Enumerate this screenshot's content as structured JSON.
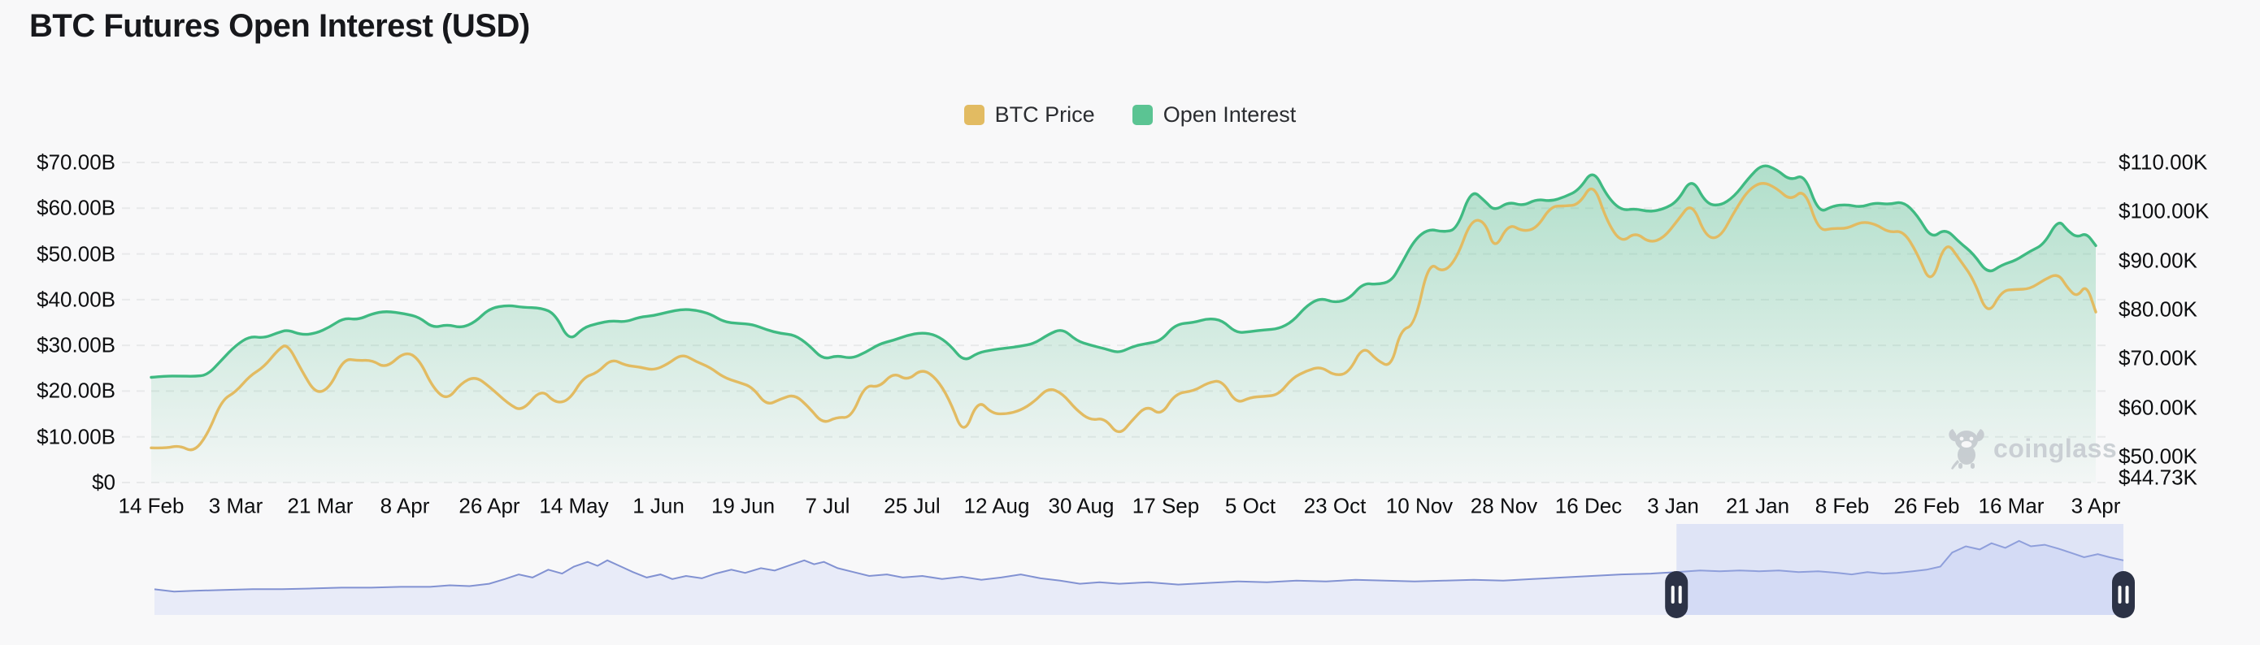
{
  "title": "BTC Futures Open Interest (USD)",
  "legend": [
    {
      "label": "BTC Price",
      "color": "#E2BB62"
    },
    {
      "label": "Open Interest",
      "color": "#5BC493"
    }
  ],
  "watermark": "coinglass",
  "colors": {
    "background": "#f8f8f9",
    "grid": "#e8e9ea",
    "open_interest_line": "#3FBA82",
    "open_interest_fill_top": "rgba(76,187,137,0.42)",
    "open_interest_fill_bottom": "rgba(76,187,137,0.03)",
    "btc_price_line": "#E2BB62",
    "navigator_line": "#8292d2",
    "navigator_fill": "#e8ebf8",
    "navigator_selection": "rgba(172,188,238,0.32)",
    "navigator_handle": "#2C3246"
  },
  "chart_data": {
    "type": "line",
    "title": "BTC Futures Open Interest (USD)",
    "grid": "on",
    "legend_position": "top-center",
    "x_tick_labels": [
      "14 Feb",
      "3 Mar",
      "21 Mar",
      "8 Apr",
      "26 Apr",
      "14 May",
      "1 Jun",
      "19 Jun",
      "7 Jul",
      "25 Jul",
      "12 Aug",
      "30 Aug",
      "17 Sep",
      "5 Oct",
      "23 Oct",
      "10 Nov",
      "28 Nov",
      "16 Dec",
      "3 Jan",
      "21 Jan",
      "8 Feb",
      "26 Feb",
      "16 Mar",
      "3 Apr"
    ],
    "x_tick_interval_days": 18,
    "left_axis": {
      "title": "Open Interest (USD)",
      "labels": [
        "$70.00B",
        "$60.00B",
        "$50.00B",
        "$40.00B",
        "$30.00B",
        "$20.00B",
        "$10.00B",
        "$0"
      ],
      "values": [
        70,
        60,
        50,
        40,
        30,
        20,
        10,
        0
      ],
      "range": [
        0,
        70
      ]
    },
    "right_axis": {
      "title": "BTC Price (USD)",
      "labels": [
        "$110.00K",
        "$100.00K",
        "$90.00K",
        "$80.00K",
        "$70.00K",
        "$60.00K",
        "$50.00K",
        "$44.73K"
      ],
      "values": [
        110,
        100,
        90,
        80,
        70,
        60,
        50,
        44.73
      ],
      "range": [
        44.73,
        110
      ]
    },
    "series": [
      {
        "name": "Open Interest",
        "type": "area",
        "axis": "left",
        "unit": "$B",
        "color": "#3FBA82"
      },
      {
        "name": "BTC Price",
        "type": "line",
        "axis": "right",
        "unit": "$K",
        "color": "#E2BB62"
      }
    ],
    "point_fields": [
      "date",
      "day_offset",
      "open_interest_usd_billion",
      "btc_price_usd_thousand"
    ],
    "points": [
      [
        "14 Feb",
        0,
        23.0,
        51.8
      ],
      [
        "17 Feb",
        3,
        23.3,
        51.7
      ],
      [
        "20 Feb",
        6,
        23.3,
        52.3
      ],
      [
        "23 Feb",
        9,
        23.2,
        50.9
      ],
      [
        "26 Feb",
        12,
        23.5,
        54.5
      ],
      [
        "29 Feb",
        15,
        26.8,
        61.5
      ],
      [
        "3 Mar",
        18,
        30.0,
        63.2
      ],
      [
        "6 Mar",
        21,
        32.0,
        66.5
      ],
      [
        "9 Mar",
        24,
        31.6,
        68.3
      ],
      [
        "12 Mar",
        27,
        32.8,
        71.8
      ],
      [
        "14 Mar",
        29,
        33.4,
        73.1
      ],
      [
        "17 Mar",
        32,
        32.3,
        67.6
      ],
      [
        "20 Mar",
        35,
        32.6,
        62.8
      ],
      [
        "23 Mar",
        38,
        34.0,
        64.0
      ],
      [
        "26 Mar",
        41,
        36.0,
        70.0
      ],
      [
        "29 Mar",
        44,
        35.6,
        69.6
      ],
      [
        "1 Apr",
        47,
        36.9,
        69.7
      ],
      [
        "4 Apr",
        50,
        37.5,
        68.0
      ],
      [
        "8 Apr",
        54,
        36.9,
        71.5
      ],
      [
        "11 Apr",
        57,
        36.2,
        70.0
      ],
      [
        "14 Apr",
        60,
        33.8,
        64.0
      ],
      [
        "17 Apr",
        63,
        34.6,
        61.5
      ],
      [
        "20 Apr",
        66,
        33.8,
        65.0
      ],
      [
        "23 Apr",
        69,
        35.1,
        66.4
      ],
      [
        "26 Apr",
        72,
        38.1,
        64.3
      ],
      [
        "30 Apr",
        76,
        38.8,
        60.8
      ],
      [
        "3 May",
        79,
        38.3,
        59.2
      ],
      [
        "7 May",
        83,
        38.2,
        63.9
      ],
      [
        "10 May",
        86,
        36.9,
        60.9
      ],
      [
        "13 May",
        89,
        30.8,
        61.5
      ],
      [
        "16 May",
        92,
        33.9,
        66.2
      ],
      [
        "19 May",
        95,
        34.8,
        67.1
      ],
      [
        "22 May",
        98,
        35.4,
        70.0
      ],
      [
        "25 May",
        101,
        35.1,
        68.6
      ],
      [
        "28 May",
        104,
        36.2,
        68.3
      ],
      [
        "31 May",
        107,
        36.5,
        67.6
      ],
      [
        "3 Jun",
        110,
        37.3,
        68.9
      ],
      [
        "6 Jun",
        113,
        37.9,
        71.0
      ],
      [
        "9 Jun",
        116,
        37.7,
        69.4
      ],
      [
        "12 Jun",
        119,
        36.9,
        68.2
      ],
      [
        "15 Jun",
        122,
        35.1,
        66.1
      ],
      [
        "18 Jun",
        125,
        34.8,
        65.2
      ],
      [
        "21 Jun",
        128,
        34.6,
        64.2
      ],
      [
        "24 Jun",
        131,
        33.4,
        60.4
      ],
      [
        "27 Jun",
        134,
        32.6,
        61.8
      ],
      [
        "30 Jun",
        137,
        32.3,
        62.7
      ],
      [
        "3 Jul",
        140,
        30.1,
        60.1
      ],
      [
        "6 Jul",
        143,
        26.9,
        56.7
      ],
      [
        "9 Jul",
        146,
        27.8,
        58.1
      ],
      [
        "12 Jul",
        149,
        27.1,
        57.9
      ],
      [
        "15 Jul",
        152,
        28.4,
        64.7
      ],
      [
        "18 Jul",
        155,
        30.3,
        64.1
      ],
      [
        "21 Jul",
        158,
        31.1,
        67.2
      ],
      [
        "24 Jul",
        161,
        32.2,
        65.5
      ],
      [
        "27 Jul",
        164,
        32.8,
        67.9
      ],
      [
        "30 Jul",
        167,
        32.3,
        66.2
      ],
      [
        "2 Aug",
        170,
        30.2,
        61.6
      ],
      [
        "5 Aug",
        173,
        26.4,
        54.1
      ],
      [
        "8 Aug",
        176,
        28.4,
        61.7
      ],
      [
        "11 Aug",
        179,
        29.0,
        58.8
      ],
      [
        "14 Aug",
        182,
        29.4,
        58.7
      ],
      [
        "17 Aug",
        185,
        29.8,
        59.4
      ],
      [
        "20 Aug",
        188,
        30.4,
        61.2
      ],
      [
        "23 Aug",
        191,
        32.4,
        64.1
      ],
      [
        "26 Aug",
        194,
        33.7,
        62.9
      ],
      [
        "29 Aug",
        197,
        31.0,
        59.5
      ],
      [
        "1 Sep",
        200,
        30.0,
        57.4
      ],
      [
        "4 Sep",
        203,
        29.3,
        57.9
      ],
      [
        "7 Sep",
        206,
        28.3,
        54.2
      ],
      [
        "10 Sep",
        209,
        29.8,
        57.6
      ],
      [
        "13 Sep",
        212,
        30.4,
        60.5
      ],
      [
        "16 Sep",
        215,
        31.0,
        58.3
      ],
      [
        "19 Sep",
        218,
        34.6,
        62.9
      ],
      [
        "23 Sep",
        222,
        35.0,
        63.4
      ],
      [
        "26 Sep",
        225,
        35.9,
        65.1
      ],
      [
        "29 Sep",
        228,
        35.5,
        65.6
      ],
      [
        "2 Oct",
        231,
        32.7,
        60.8
      ],
      [
        "5 Oct",
        234,
        33.0,
        62.1
      ],
      [
        "8 Oct",
        237,
        33.4,
        62.3
      ],
      [
        "11 Oct",
        240,
        33.6,
        62.6
      ],
      [
        "14 Oct",
        243,
        35.2,
        66.1
      ],
      [
        "17 Oct",
        246,
        38.7,
        67.5
      ],
      [
        "20 Oct",
        249,
        40.4,
        68.4
      ],
      [
        "23 Oct",
        252,
        39.3,
        66.5
      ],
      [
        "26 Oct",
        255,
        40.1,
        67.1
      ],
      [
        "29 Oct",
        258,
        43.6,
        72.7
      ],
      [
        "1 Nov",
        261,
        43.3,
        69.6
      ],
      [
        "4 Nov",
        264,
        44.0,
        68.2
      ],
      [
        "6 Nov",
        266,
        47.5,
        75.9
      ],
      [
        "9 Nov",
        269,
        53.2,
        76.8
      ],
      [
        "12 Nov",
        272,
        55.5,
        89.9
      ],
      [
        "15 Nov",
        275,
        54.8,
        87.4
      ],
      [
        "18 Nov",
        278,
        55.3,
        90.5
      ],
      [
        "21 Nov",
        281,
        64.2,
        98.4
      ],
      [
        "24 Nov",
        284,
        61.5,
        98.0
      ],
      [
        "26 Nov",
        286,
        59.4,
        92.0
      ],
      [
        "29 Nov",
        289,
        61.4,
        97.6
      ],
      [
        "2 Dec",
        292,
        60.5,
        95.9
      ],
      [
        "5 Dec",
        295,
        62.0,
        96.6
      ],
      [
        "8 Dec",
        298,
        61.5,
        101.1
      ],
      [
        "11 Dec",
        301,
        62.5,
        101.1
      ],
      [
        "14 Dec",
        304,
        64.0,
        101.4
      ],
      [
        "17 Dec",
        307,
        68.6,
        106.1
      ],
      [
        "20 Dec",
        310,
        62.5,
        97.8
      ],
      [
        "23 Dec",
        313,
        59.5,
        93.6
      ],
      [
        "26 Dec",
        316,
        59.9,
        95.8
      ],
      [
        "29 Dec",
        319,
        59.2,
        93.6
      ],
      [
        "1 Jan",
        322,
        59.8,
        94.6
      ],
      [
        "4 Jan",
        325,
        61.5,
        98.2
      ],
      [
        "7 Jan",
        328,
        66.8,
        102.0
      ],
      [
        "10 Jan",
        331,
        61.0,
        94.7
      ],
      [
        "13 Jan",
        334,
        60.5,
        94.6
      ],
      [
        "16 Jan",
        337,
        62.5,
        99.9
      ],
      [
        "19 Jan",
        340,
        66.5,
        104.4
      ],
      [
        "22 Jan",
        343,
        69.7,
        106.1
      ],
      [
        "25 Jan",
        346,
        68.5,
        104.8
      ],
      [
        "28 Jan",
        349,
        66.0,
        102.2
      ],
      [
        "31 Jan",
        352,
        67.5,
        104.7
      ],
      [
        "3 Feb",
        355,
        58.9,
        96.0
      ],
      [
        "6 Feb",
        358,
        60.5,
        96.6
      ],
      [
        "9 Feb",
        361,
        60.8,
        96.5
      ],
      [
        "12 Feb",
        364,
        60.2,
        97.9
      ],
      [
        "15 Feb",
        367,
        61.2,
        97.5
      ],
      [
        "18 Feb",
        370,
        60.8,
        95.7
      ],
      [
        "21 Feb",
        373,
        61.5,
        96.1
      ],
      [
        "24 Feb",
        376,
        58.5,
        91.5
      ],
      [
        "27 Feb",
        379,
        53.3,
        84.7
      ],
      [
        "2 Mar",
        382,
        55.6,
        94.2
      ],
      [
        "5 Mar",
        385,
        52.5,
        90.2
      ],
      [
        "8 Mar",
        388,
        50.0,
        86.2
      ],
      [
        "11 Mar",
        391,
        45.6,
        78.6
      ],
      [
        "14 Mar",
        394,
        47.6,
        83.9
      ],
      [
        "17 Mar",
        397,
        48.6,
        84.1
      ],
      [
        "20 Mar",
        400,
        50.6,
        84.2
      ],
      [
        "23 Mar",
        403,
        52.1,
        86.1
      ],
      [
        "26 Mar",
        406,
        57.6,
        87.4
      ],
      [
        "28 Mar",
        408,
        55.1,
        84.4
      ],
      [
        "30 Mar",
        410,
        53.6,
        82.5
      ],
      [
        "1 Apr",
        412,
        54.6,
        85.2
      ],
      [
        "3 Apr",
        414,
        51.8,
        79.5
      ]
    ],
    "navigator": {
      "selection_start_frac": 0.773,
      "selection_end_frac": 1.0,
      "point_fields": [
        "x_fraction",
        "height_fraction"
      ],
      "points": [
        [
          0.0,
          0.33
        ],
        [
          0.01,
          0.3
        ],
        [
          0.02,
          0.31
        ],
        [
          0.035,
          0.32
        ],
        [
          0.05,
          0.33
        ],
        [
          0.065,
          0.33
        ],
        [
          0.08,
          0.34
        ],
        [
          0.095,
          0.35
        ],
        [
          0.11,
          0.35
        ],
        [
          0.125,
          0.36
        ],
        [
          0.14,
          0.36
        ],
        [
          0.15,
          0.38
        ],
        [
          0.16,
          0.37
        ],
        [
          0.17,
          0.4
        ],
        [
          0.178,
          0.46
        ],
        [
          0.185,
          0.52
        ],
        [
          0.192,
          0.48
        ],
        [
          0.2,
          0.58
        ],
        [
          0.207,
          0.53
        ],
        [
          0.213,
          0.62
        ],
        [
          0.22,
          0.68
        ],
        [
          0.225,
          0.63
        ],
        [
          0.23,
          0.7
        ],
        [
          0.237,
          0.62
        ],
        [
          0.243,
          0.55
        ],
        [
          0.25,
          0.48
        ],
        [
          0.257,
          0.52
        ],
        [
          0.263,
          0.46
        ],
        [
          0.27,
          0.5
        ],
        [
          0.278,
          0.47
        ],
        [
          0.285,
          0.53
        ],
        [
          0.293,
          0.58
        ],
        [
          0.3,
          0.54
        ],
        [
          0.308,
          0.6
        ],
        [
          0.315,
          0.57
        ],
        [
          0.323,
          0.64
        ],
        [
          0.33,
          0.7
        ],
        [
          0.335,
          0.65
        ],
        [
          0.34,
          0.68
        ],
        [
          0.347,
          0.6
        ],
        [
          0.355,
          0.55
        ],
        [
          0.363,
          0.5
        ],
        [
          0.372,
          0.52
        ],
        [
          0.38,
          0.48
        ],
        [
          0.39,
          0.5
        ],
        [
          0.4,
          0.46
        ],
        [
          0.41,
          0.49
        ],
        [
          0.42,
          0.45
        ],
        [
          0.43,
          0.48
        ],
        [
          0.44,
          0.52
        ],
        [
          0.45,
          0.47
        ],
        [
          0.46,
          0.44
        ],
        [
          0.47,
          0.4
        ],
        [
          0.48,
          0.42
        ],
        [
          0.49,
          0.4
        ],
        [
          0.505,
          0.42
        ],
        [
          0.52,
          0.39
        ],
        [
          0.535,
          0.41
        ],
        [
          0.55,
          0.43
        ],
        [
          0.565,
          0.42
        ],
        [
          0.58,
          0.44
        ],
        [
          0.595,
          0.43
        ],
        [
          0.61,
          0.45
        ],
        [
          0.625,
          0.44
        ],
        [
          0.64,
          0.43
        ],
        [
          0.655,
          0.44
        ],
        [
          0.67,
          0.45
        ],
        [
          0.685,
          0.44
        ],
        [
          0.7,
          0.46
        ],
        [
          0.715,
          0.48
        ],
        [
          0.73,
          0.5
        ],
        [
          0.745,
          0.52
        ],
        [
          0.76,
          0.53
        ],
        [
          0.773,
          0.55
        ],
        [
          0.785,
          0.57
        ],
        [
          0.795,
          0.56
        ],
        [
          0.805,
          0.57
        ],
        [
          0.815,
          0.56
        ],
        [
          0.825,
          0.57
        ],
        [
          0.835,
          0.55
        ],
        [
          0.845,
          0.56
        ],
        [
          0.855,
          0.54
        ],
        [
          0.862,
          0.52
        ],
        [
          0.87,
          0.55
        ],
        [
          0.878,
          0.53
        ],
        [
          0.885,
          0.54
        ],
        [
          0.893,
          0.56
        ],
        [
          0.9,
          0.58
        ],
        [
          0.907,
          0.62
        ],
        [
          0.913,
          0.8
        ],
        [
          0.92,
          0.88
        ],
        [
          0.927,
          0.84
        ],
        [
          0.933,
          0.92
        ],
        [
          0.94,
          0.86
        ],
        [
          0.947,
          0.95
        ],
        [
          0.953,
          0.88
        ],
        [
          0.96,
          0.9
        ],
        [
          0.967,
          0.85
        ],
        [
          0.973,
          0.8
        ],
        [
          0.98,
          0.74
        ],
        [
          0.987,
          0.78
        ],
        [
          0.993,
          0.74
        ],
        [
          1.0,
          0.7
        ]
      ]
    }
  }
}
